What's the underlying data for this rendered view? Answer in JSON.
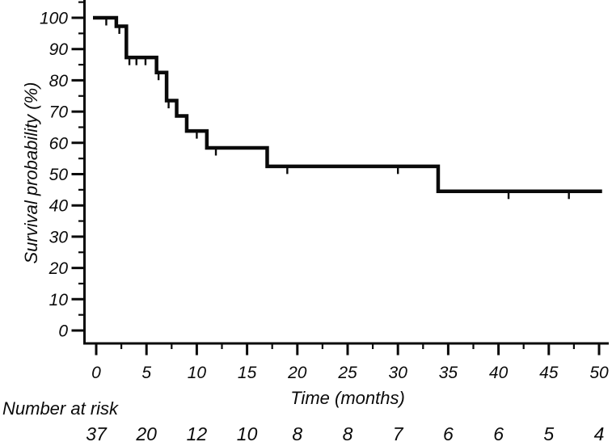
{
  "chart_data": {
    "type": "line",
    "subtype": "kaplan-meier-step-curve",
    "title": "",
    "xlabel": "Time (months)",
    "ylabel": "Survival probability (%)",
    "xlim": [
      0,
      50
    ],
    "ylim": [
      0,
      100
    ],
    "grid": false,
    "legend": "none",
    "x_major_ticks": [
      0,
      5,
      10,
      15,
      20,
      25,
      30,
      35,
      40,
      45,
      50
    ],
    "x_minor_tick_interval": 2.5,
    "y_major_ticks": [
      0,
      10,
      20,
      30,
      40,
      50,
      60,
      70,
      80,
      90,
      100
    ],
    "y_minor_tick_interval": 5,
    "series": [
      {
        "name": "survival-curve",
        "steps": [
          {
            "t": 0,
            "p": 100
          },
          {
            "t": 2,
            "p": 97.3
          },
          {
            "t": 3,
            "p": 87.3
          },
          {
            "t": 6,
            "p": 82.5
          },
          {
            "t": 7,
            "p": 73.5
          },
          {
            "t": 8,
            "p": 68.6
          },
          {
            "t": 9,
            "p": 63.8
          },
          {
            "t": 11,
            "p": 58.4
          },
          {
            "t": 17,
            "p": 52.5
          },
          {
            "t": 34,
            "p": 44.5
          }
        ],
        "end_t": 50.3,
        "censor_marks": [
          {
            "t": 1,
            "p": 100
          },
          {
            "t": 2.3,
            "p": 97.3
          },
          {
            "t": 3.3,
            "p": 87.3
          },
          {
            "t": 4,
            "p": 87.3
          },
          {
            "t": 4.9,
            "p": 87.3
          },
          {
            "t": 6.2,
            "p": 82.5
          },
          {
            "t": 7.2,
            "p": 73.5
          },
          {
            "t": 10,
            "p": 63.8
          },
          {
            "t": 11.9,
            "p": 58.4
          },
          {
            "t": 19,
            "p": 52.5
          },
          {
            "t": 30,
            "p": 52.5
          },
          {
            "t": 41,
            "p": 44.5
          },
          {
            "t": 47,
            "p": 44.5
          }
        ]
      }
    ],
    "number_at_risk": {
      "label": "Number at risk",
      "times": [
        0,
        5,
        10,
        15,
        20,
        25,
        30,
        35,
        40,
        45,
        50
      ],
      "counts": [
        37,
        20,
        12,
        10,
        8,
        8,
        7,
        6,
        6,
        5,
        4
      ]
    },
    "colors": {
      "line": "#0a0a0a",
      "background": "#ffffff"
    }
  }
}
